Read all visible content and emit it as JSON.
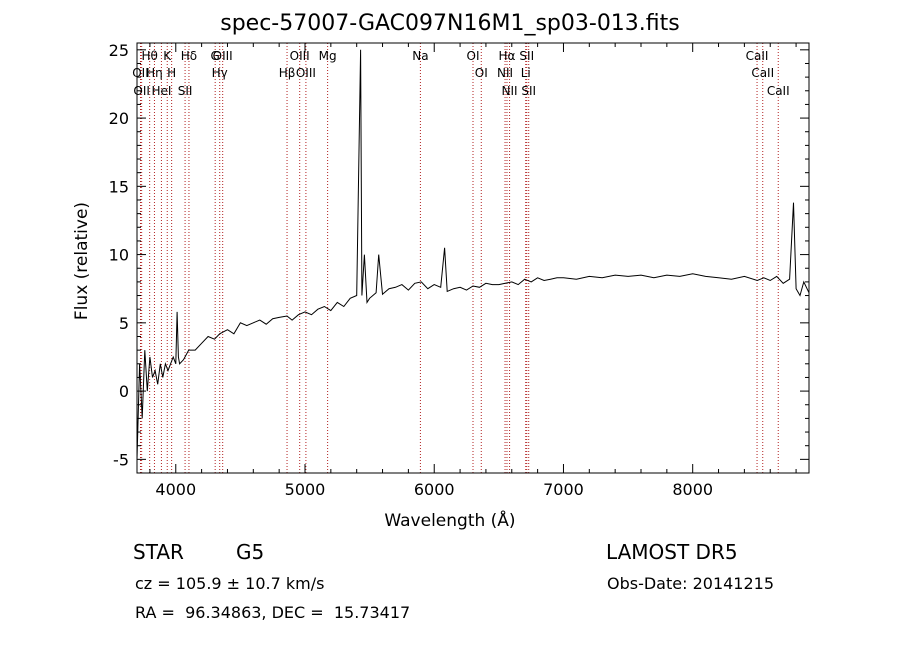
{
  "chart_data": {
    "type": "line",
    "title": "spec-57007-GAC097N16M1_sp03-013.fits",
    "xlabel": "Wavelength (Å)",
    "ylabel": "Flux (relative)",
    "xlim": [
      3700,
      8900
    ],
    "ylim": [
      -6,
      25.5
    ],
    "xticks": [
      4000,
      5000,
      6000,
      7000,
      8000
    ],
    "yticks": [
      -5,
      0,
      5,
      10,
      15,
      20,
      25
    ],
    "grid": false,
    "series": [
      {
        "color": "#000000",
        "x": [
          3700,
          3720,
          3740,
          3760,
          3780,
          3800,
          3820,
          3840,
          3860,
          3880,
          3900,
          3920,
          3940,
          3960,
          3980,
          4000,
          4010,
          4020,
          4030,
          4060,
          4100,
          4150,
          4200,
          4250,
          4300,
          4340,
          4400,
          4450,
          4500,
          4550,
          4600,
          4650,
          4700,
          4750,
          4800,
          4861,
          4900,
          4950,
          5000,
          5050,
          5100,
          5150,
          5200,
          5250,
          5300,
          5350,
          5400,
          5430,
          5440,
          5460,
          5480,
          5500,
          5550,
          5570,
          5600,
          5650,
          5700,
          5750,
          5800,
          5850,
          5900,
          5950,
          6000,
          6050,
          6080,
          6100,
          6150,
          6200,
          6250,
          6300,
          6350,
          6400,
          6450,
          6500,
          6550,
          6600,
          6650,
          6700,
          6750,
          6800,
          6850,
          6900,
          6950,
          7000,
          7100,
          7200,
          7300,
          7400,
          7500,
          7600,
          7700,
          7800,
          7900,
          8000,
          8100,
          8200,
          8300,
          8400,
          8500,
          8550,
          8600,
          8650,
          8700,
          8750,
          8780,
          8800,
          8830,
          8860,
          8900
        ],
        "y": [
          -5,
          2,
          -2,
          3,
          0,
          2.5,
          1,
          1.5,
          0.5,
          2,
          1,
          2,
          1.5,
          2,
          2.5,
          2,
          5.8,
          2.5,
          2,
          2.3,
          3,
          3,
          3.5,
          4,
          3.8,
          4.2,
          4.5,
          4.2,
          5,
          4.8,
          5,
          5.2,
          4.9,
          5.3,
          5.4,
          5.5,
          5.2,
          5.6,
          5.8,
          5.6,
          6,
          6.2,
          5.9,
          6.5,
          6.2,
          6.8,
          7,
          25,
          7,
          10,
          6.5,
          6.8,
          7.2,
          10,
          7.1,
          7.5,
          7.6,
          7.8,
          7.4,
          7.9,
          8,
          7.5,
          7.8,
          7.6,
          10.5,
          7.3,
          7.5,
          7.6,
          7.4,
          7.7,
          7.6,
          7.9,
          7.8,
          7.8,
          7.9,
          8,
          7.8,
          8.2,
          8,
          8.3,
          8.1,
          8.2,
          8.3,
          8.3,
          8.2,
          8.4,
          8.3,
          8.5,
          8.4,
          8.5,
          8.3,
          8.5,
          8.4,
          8.6,
          8.4,
          8.3,
          8.2,
          8.4,
          8.1,
          8.3,
          8.1,
          8.4,
          7.9,
          8.2,
          13.8,
          7.5,
          7,
          8,
          7.2
        ]
      }
    ],
    "line_markers": [
      {
        "name": "Hθ",
        "x": 3798
      },
      {
        "name": "OII",
        "x": 3727
      },
      {
        "name": "OII",
        "x": 3736
      },
      {
        "name": "Hη",
        "x": 3835
      },
      {
        "name": "K",
        "x": 3934
      },
      {
        "name": "HeI",
        "x": 3889
      },
      {
        "name": "H",
        "x": 3968
      },
      {
        "name": "Hδ",
        "x": 4102
      },
      {
        "name": "SII",
        "x": 4072
      },
      {
        "name": "OIII",
        "x": 4363
      },
      {
        "name": "Hγ",
        "x": 4340
      },
      {
        "name": "G",
        "x": 4305
      },
      {
        "name": "OIII",
        "x": 4959
      },
      {
        "name": "OIII",
        "x": 5007
      },
      {
        "name": "Hβ",
        "x": 4861
      },
      {
        "name": "Mg",
        "x": 5175
      },
      {
        "name": "Na",
        "x": 5893
      },
      {
        "name": "OI",
        "x": 6300
      },
      {
        "name": "OI",
        "x": 6364
      },
      {
        "name": "Hα",
        "x": 6563
      },
      {
        "name": "NII",
        "x": 6548
      },
      {
        "name": "NII",
        "x": 6583
      },
      {
        "name": "SII",
        "x": 6716
      },
      {
        "name": "Li",
        "x": 6708
      },
      {
        "name": "SII",
        "x": 6731
      },
      {
        "name": "CaII",
        "x": 8498
      },
      {
        "name": "CaII",
        "x": 8542
      },
      {
        "name": "CaII",
        "x": 8662
      }
    ]
  },
  "info": {
    "object_class": "STAR",
    "object_subclass": "G5",
    "survey": "LAMOST DR5",
    "cz": "cz = 105.9 ± 10.7 km/s",
    "obs_date": "Obs-Date: 20141215",
    "radec": "RA =  96.34863, DEC =  15.73417"
  },
  "colors": {
    "spectrum": "#000000",
    "line_marker": "#b22222",
    "axes": "#000000",
    "background": "#ffffff"
  }
}
